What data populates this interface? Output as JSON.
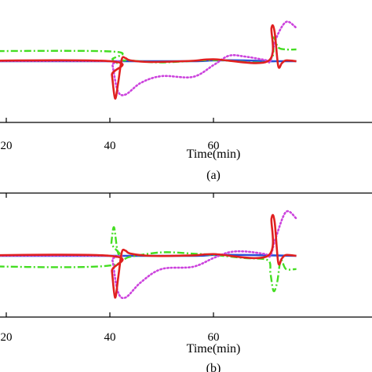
{
  "chart_data": [
    {
      "type": "line",
      "panel_label": "(a)",
      "xlabel": "Time(min)",
      "xticks": [
        20,
        40,
        60
      ],
      "xlim": [
        8,
        76
      ],
      "ylim": [
        -1,
        1
      ],
      "grid": false,
      "series": [
        {
          "color": "#2b4fd6",
          "style": "solid",
          "x": [
            8,
            40,
            44,
            56,
            60,
            66,
            70.5,
            72,
            74,
            76
          ],
          "y": [
            0,
            0,
            0,
            0,
            0.02,
            0.02,
            0,
            0,
            0,
            0
          ]
        },
        {
          "color": "#44dd22",
          "style": "dashdot",
          "x": [
            8,
            40,
            40.5,
            41.5,
            43,
            50,
            60,
            70.5,
            71.5,
            72.5,
            74,
            76
          ],
          "y": [
            0.25,
            0.25,
            0.05,
            -0.05,
            0.02,
            -0.03,
            0.03,
            0,
            0.6,
            0.35,
            0.3,
            0.3
          ]
        },
        {
          "color": "#cc44dd",
          "style": "dotted",
          "x": [
            8,
            40,
            40.5,
            41.5,
            43,
            46,
            50,
            56,
            60,
            63,
            66,
            70,
            71,
            72,
            74,
            76
          ],
          "y": [
            0,
            0,
            -0.1,
            -0.75,
            -0.85,
            -0.55,
            -0.38,
            -0.4,
            -0.1,
            0.14,
            0.12,
            0.03,
            0,
            0.55,
            1.0,
            0.85
          ]
        },
        {
          "color": "#e02020",
          "style": "solid",
          "x": [
            8,
            40,
            40.4,
            41,
            41.6,
            42.3,
            43,
            44,
            48,
            56,
            60,
            70.5,
            71.2,
            71.8,
            72.5,
            73.2,
            74,
            76
          ],
          "y": [
            0,
            0,
            -0.35,
            -0.95,
            -0.55,
            0.05,
            0.08,
            0.02,
            -0.02,
            0.01,
            0.05,
            0,
            0.85,
            0.75,
            -0.12,
            -0.05,
            0.02,
            0
          ]
        }
      ]
    },
    {
      "type": "line",
      "panel_label": "(b)",
      "xlabel": "Time(min)",
      "xticks": [
        20,
        40,
        60
      ],
      "xlim": [
        8,
        76
      ],
      "ylim": [
        -1,
        1
      ],
      "grid": false,
      "series": [
        {
          "color": "#2b4fd6",
          "style": "solid",
          "x": [
            8,
            40,
            56,
            60,
            66,
            76
          ],
          "y": [
            0,
            0,
            0,
            0.02,
            0.02,
            0
          ]
        },
        {
          "color": "#44dd22",
          "style": "dashdot",
          "x": [
            8,
            40,
            40.3,
            40.8,
            41.5,
            42.5,
            44,
            50,
            56,
            60,
            66,
            70.5,
            71,
            71.6,
            72.3,
            73,
            74,
            76
          ],
          "y": [
            -0.22,
            -0.22,
            0.3,
            0.65,
            0.1,
            -0.08,
            -0.02,
            0.08,
            0.05,
            0.02,
            -0.05,
            -0.1,
            -0.4,
            -0.8,
            -0.6,
            -0.1,
            -0.3,
            -0.3
          ]
        },
        {
          "color": "#cc44dd",
          "style": "dotted",
          "x": [
            8,
            40,
            40.5,
            41.5,
            43,
            46,
            50,
            56,
            60,
            63,
            66,
            70,
            71,
            72,
            74,
            76
          ],
          "y": [
            0,
            0,
            -0.1,
            -0.8,
            -0.95,
            -0.6,
            -0.3,
            -0.25,
            -0.05,
            0.08,
            0.1,
            0.04,
            0,
            0.4,
            1.0,
            0.85
          ]
        },
        {
          "color": "#e02020",
          "style": "solid",
          "x": [
            8,
            40,
            40.4,
            41,
            41.6,
            42.3,
            43,
            44,
            48,
            56,
            60,
            70.5,
            71.2,
            71.8,
            72.5,
            73.2,
            74,
            76
          ],
          "y": [
            0,
            0,
            -0.35,
            -0.95,
            -0.5,
            0.08,
            0.12,
            0.05,
            0,
            0.01,
            0.04,
            0,
            0.85,
            0.78,
            -0.15,
            -0.06,
            0.02,
            0
          ]
        }
      ]
    }
  ]
}
